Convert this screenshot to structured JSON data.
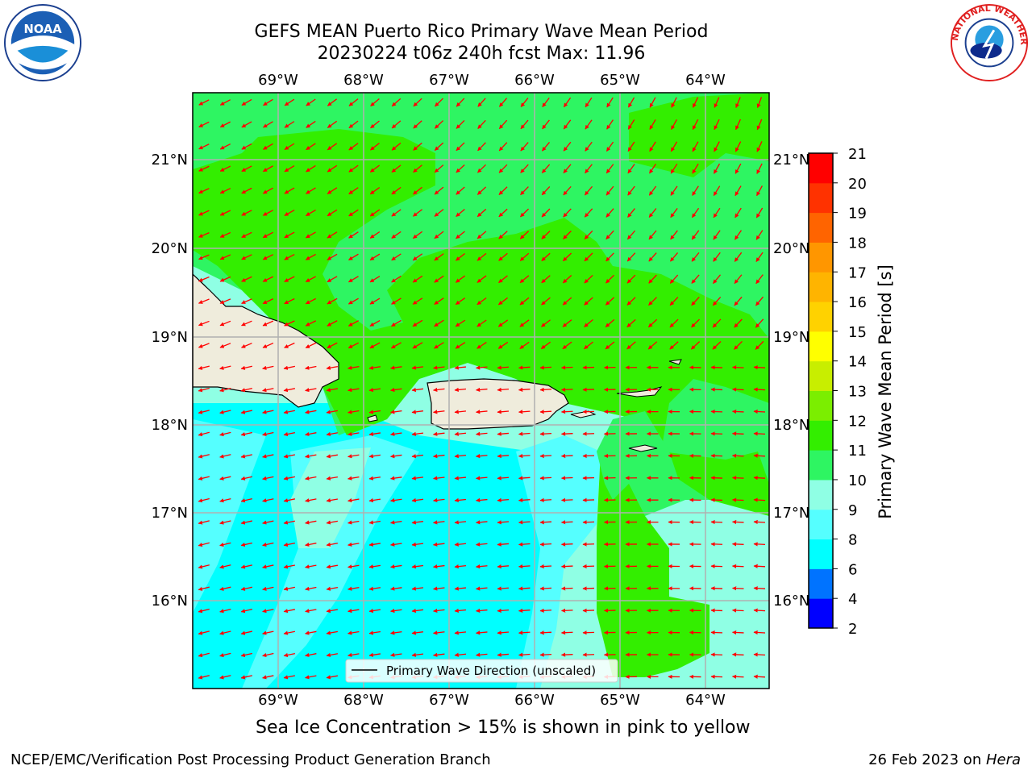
{
  "header": {
    "title": "GEFS MEAN Puerto Rico Primary Wave Mean Period",
    "subtitle": "20230224 t06z 240h fcst   Max: 11.96"
  },
  "logos": {
    "left": {
      "icon": "noaa-logo-icon",
      "text": "NOAA"
    },
    "right": {
      "icon": "nws-logo-icon",
      "text": "NATIONAL WEATHER SERVICE"
    }
  },
  "map": {
    "lon_labels": [
      "69°W",
      "68°W",
      "67°W",
      "66°W",
      "65°W",
      "64°W"
    ],
    "lat_labels": [
      "21°N",
      "20°N",
      "19°N",
      "18°N",
      "17°N",
      "16°N"
    ],
    "legend_label": "Primary Wave Direction (unscaled)",
    "arrow_color": "#ff0000",
    "land_color": "#efecdc",
    "grid_color": "#b0b0b0"
  },
  "colorbar": {
    "title": "Primary Wave Mean Period [s]",
    "ticks": [
      "2",
      "4",
      "6",
      "8",
      "9",
      "10",
      "11",
      "12",
      "13",
      "14",
      "15",
      "16",
      "17",
      "18",
      "19",
      "20",
      "21"
    ],
    "colors": [
      "#0000ff",
      "#0073ff",
      "#00ffff",
      "#55ffff",
      "#8fffe4",
      "#2ef562",
      "#33ee00",
      "#7bee00",
      "#c8ee00",
      "#ffff00",
      "#ffd200",
      "#ffb400",
      "#ff9600",
      "#ff6400",
      "#ff3200",
      "#ff0000"
    ]
  },
  "footer": {
    "note": "Sea Ice Concentration > 15% is shown in pink to yellow",
    "left": "NCEP/EMC/Verification Post Processing Product Generation Branch",
    "date": "26 Feb 2023 on ",
    "host": "Hera"
  }
}
